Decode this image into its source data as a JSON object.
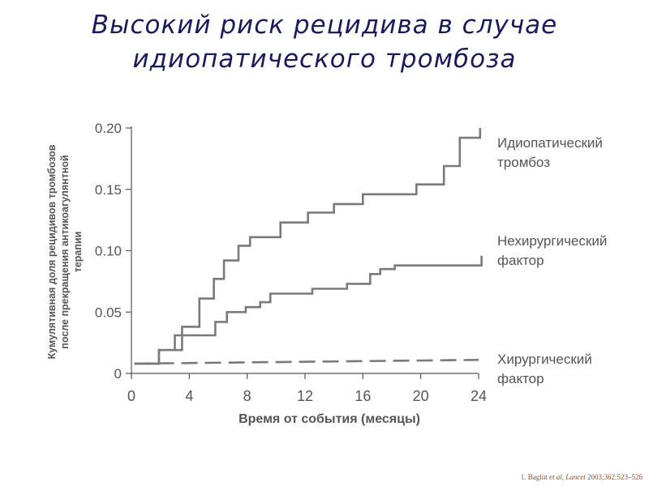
{
  "slide": {
    "title_line1": "Высокий риск рецидива в случае",
    "title_line2": "идиопатического тромбоза"
  },
  "citation": {
    "author": "1. Baglin",
    "etal": "et al,",
    "journal": "Lancet",
    "ref": "2003;362:523–526"
  },
  "chart_data": {
    "type": "line",
    "title": "",
    "xlabel": "Время от события (месяцы)",
    "ylabel_lines": [
      "Кумулятивная доля рецидивов тромбозов",
      "после прекращения антикоагулянтной",
      "терапии"
    ],
    "xlim": [
      0,
      24
    ],
    "ylim": [
      0,
      0.2
    ],
    "xticks": [
      0,
      4,
      8,
      12,
      16,
      20,
      24
    ],
    "xtick_labels": [
      "0",
      "4",
      "8",
      "12",
      "16",
      "20",
      "24"
    ],
    "yticks": [
      0,
      0.05,
      0.1,
      0.15,
      0.2
    ],
    "ytick_labels": [
      "0",
      "0.05",
      "0.10",
      "0.15",
      "0.20"
    ],
    "grid": false,
    "legend": "right-side direct labels",
    "colors": {
      "series": "#7a7a7a",
      "axis": "#555555",
      "text": "#555555"
    },
    "series": [
      {
        "label_lines": [
          "Идиопатический",
          "тромбоз"
        ],
        "style": "step",
        "points": [
          [
            0.2,
            0.008
          ],
          [
            1.9,
            0.008
          ],
          [
            1.9,
            0.019
          ],
          [
            3.5,
            0.019
          ],
          [
            3.5,
            0.038
          ],
          [
            4.7,
            0.038
          ],
          [
            4.7,
            0.061
          ],
          [
            5.7,
            0.061
          ],
          [
            5.7,
            0.077
          ],
          [
            6.4,
            0.077
          ],
          [
            6.4,
            0.092
          ],
          [
            7.4,
            0.092
          ],
          [
            7.4,
            0.104
          ],
          [
            8.2,
            0.104
          ],
          [
            8.2,
            0.111
          ],
          [
            10.3,
            0.111
          ],
          [
            10.3,
            0.123
          ],
          [
            12.2,
            0.123
          ],
          [
            12.2,
            0.131
          ],
          [
            14.0,
            0.131
          ],
          [
            14.0,
            0.138
          ],
          [
            16.0,
            0.138
          ],
          [
            16.0,
            0.146
          ],
          [
            19.7,
            0.146
          ],
          [
            19.7,
            0.154
          ],
          [
            21.6,
            0.154
          ],
          [
            21.6,
            0.169
          ],
          [
            22.7,
            0.169
          ],
          [
            22.7,
            0.192
          ],
          [
            24.1,
            0.192
          ],
          [
            24.1,
            0.2
          ]
        ]
      },
      {
        "label_lines": [
          "Нехирургический",
          "фактор"
        ],
        "style": "step",
        "points": [
          [
            0.2,
            0.008
          ],
          [
            1.9,
            0.008
          ],
          [
            1.9,
            0.019
          ],
          [
            3.0,
            0.019
          ],
          [
            3.0,
            0.031
          ],
          [
            5.8,
            0.031
          ],
          [
            5.8,
            0.042
          ],
          [
            6.6,
            0.042
          ],
          [
            6.6,
            0.05
          ],
          [
            7.9,
            0.05
          ],
          [
            7.9,
            0.054
          ],
          [
            8.9,
            0.054
          ],
          [
            8.9,
            0.058
          ],
          [
            9.6,
            0.058
          ],
          [
            9.6,
            0.065
          ],
          [
            12.5,
            0.065
          ],
          [
            12.5,
            0.069
          ],
          [
            14.9,
            0.069
          ],
          [
            14.9,
            0.073
          ],
          [
            16.5,
            0.073
          ],
          [
            16.5,
            0.081
          ],
          [
            17.2,
            0.081
          ],
          [
            17.2,
            0.085
          ],
          [
            18.2,
            0.085
          ],
          [
            18.2,
            0.088
          ],
          [
            24.2,
            0.088
          ],
          [
            24.2,
            0.096
          ]
        ]
      },
      {
        "label_lines": [
          "Хирургический",
          "фактор"
        ],
        "style": "dashed",
        "points": [
          [
            0.2,
            0.008
          ],
          [
            24.0,
            0.011
          ]
        ]
      }
    ]
  }
}
